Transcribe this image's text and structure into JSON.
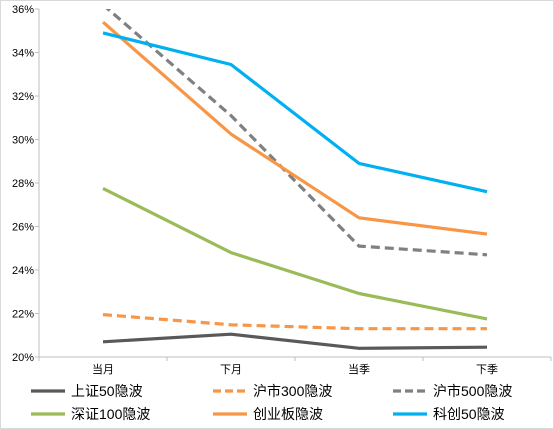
{
  "chart_data": {
    "type": "line",
    "categories": [
      "当月",
      "下月",
      "当季",
      "下季"
    ],
    "y_ticks": [
      "20%",
      "22%",
      "24%",
      "26%",
      "28%",
      "30%",
      "32%",
      "34%",
      "36%"
    ],
    "ylim": [
      0.2,
      0.36
    ],
    "grid": false,
    "legend_position": "bottom",
    "series": [
      {
        "name": "上证50隐波",
        "values": [
          0.207,
          0.2105,
          0.204,
          0.2045
        ],
        "color": "#595959",
        "dash": "solid"
      },
      {
        "name": "沪市300隐波",
        "values": [
          0.2195,
          0.2148,
          0.213,
          0.213
        ],
        "color": "#F79646",
        "dash": "dashed"
      },
      {
        "name": "沪市500隐波",
        "values": [
          0.362,
          0.311,
          0.251,
          0.247
        ],
        "color": "#808080",
        "dash": "dashed"
      },
      {
        "name": "深证100隐波",
        "values": [
          0.2775,
          0.248,
          0.2292,
          0.2175
        ],
        "color": "#9BBB59",
        "dash": "solid"
      },
      {
        "name": "创业板隐波",
        "values": [
          0.354,
          0.3025,
          0.264,
          0.2565
        ],
        "color": "#F79646",
        "dash": "solid"
      },
      {
        "name": "科创50隐波",
        "values": [
          0.349,
          0.3345,
          0.289,
          0.276
        ],
        "color": "#00B0F0",
        "dash": "solid"
      }
    ]
  }
}
